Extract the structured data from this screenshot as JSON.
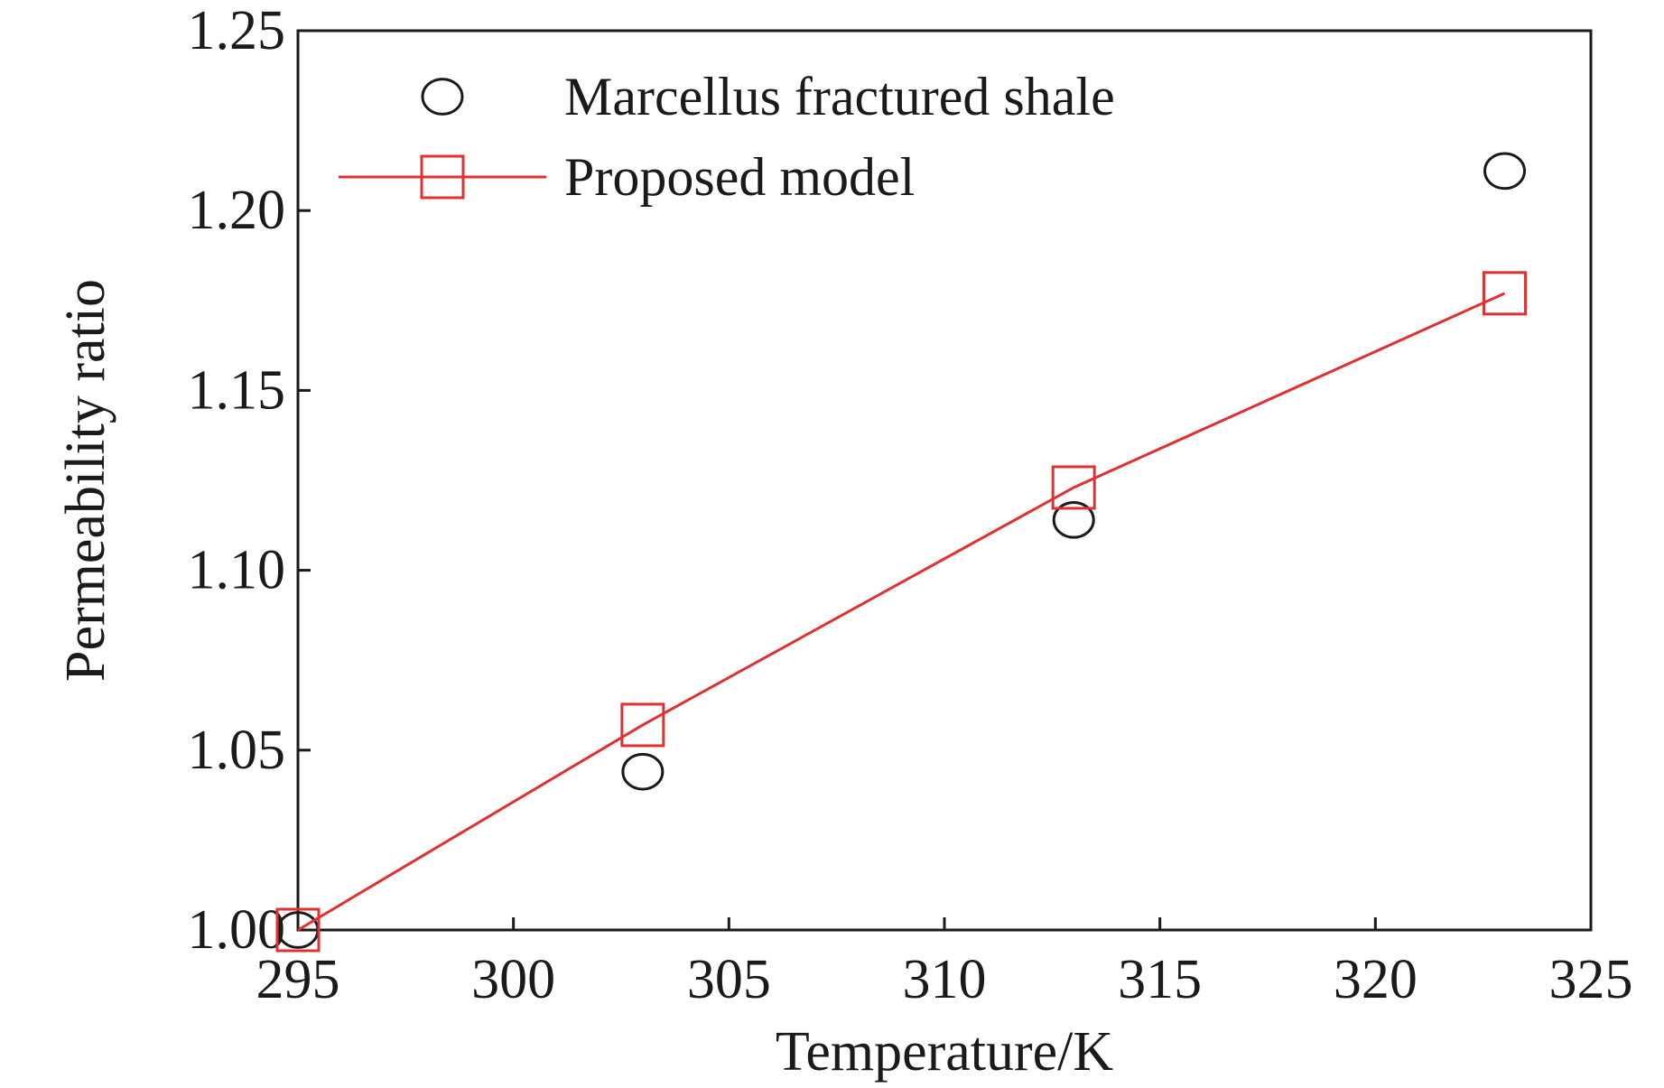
{
  "chart_data": {
    "type": "scatter",
    "title": "",
    "xlabel": "Temperature/K",
    "ylabel": "Permeability ratio",
    "xlim": [
      295,
      325
    ],
    "ylim": [
      1.0,
      1.25
    ],
    "xticks": [
      "295",
      "300",
      "305",
      "310",
      "315",
      "320",
      "325"
    ],
    "yticks": [
      "1.00",
      "1.05",
      "1.10",
      "1.15",
      "1.20",
      "1.25"
    ],
    "grid": false,
    "legend_position": "top-left",
    "series": [
      {
        "name": "Marcellus fractured shale",
        "marker": "circle",
        "line": false,
        "color": "#1a1a1a",
        "x": [
          295,
          303,
          313,
          323
        ],
        "y": [
          1.0,
          1.044,
          1.114,
          1.211
        ]
      },
      {
        "name": "Proposed model",
        "marker": "square",
        "line": true,
        "color": "#e03030",
        "x": [
          295,
          303,
          313,
          323
        ],
        "y": [
          1.0,
          1.057,
          1.123,
          1.177
        ]
      }
    ]
  }
}
